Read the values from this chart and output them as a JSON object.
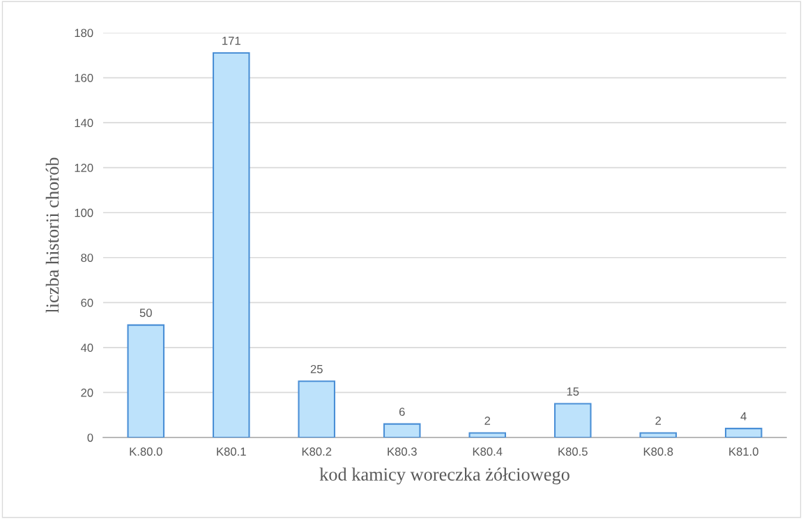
{
  "chart_data": {
    "type": "bar",
    "xlabel": "kod kamicy woreczka żółciowego",
    "ylabel": "liczba historii chorób",
    "categories": [
      "K.80.0",
      "K80.1",
      "K80.2",
      "K80.3",
      "K80.4",
      "K80.5",
      "K80.8",
      "K81.0"
    ],
    "series": [
      {
        "color": "#bde2fb",
        "values": [
          50,
          171,
          25,
          6,
          2,
          15,
          2,
          4
        ]
      }
    ],
    "ylim": [
      0,
      180
    ],
    "yticks": [
      0,
      20,
      40,
      60,
      80,
      100,
      120,
      140,
      160,
      180
    ],
    "grid": "y",
    "data_labels": true
  }
}
